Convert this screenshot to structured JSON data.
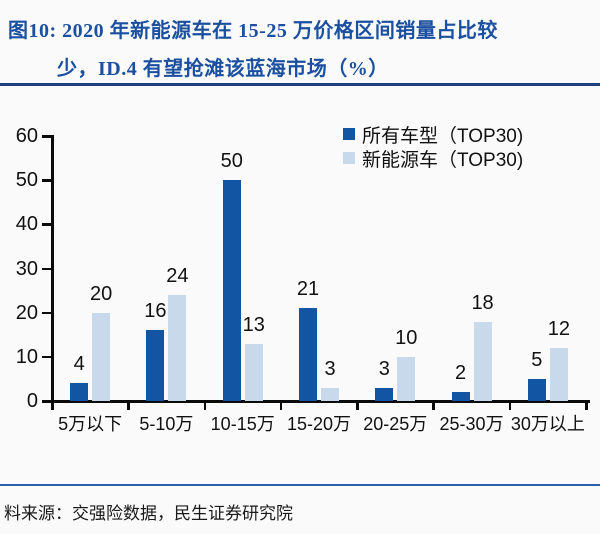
{
  "title": {
    "line1": "图10: 2020 年新能源车在 15-25 万价格区间销量占比较",
    "line2": "少，ID.4 有望抢滩该蓝海市场（%）"
  },
  "source": {
    "text": "料来源：交强险数据，民生证券研究院"
  },
  "colors": {
    "title": "#1b4fa0",
    "title_rule": "#1f3f80",
    "footer_rule": "#2e5fae",
    "axis": "#0a0a0a",
    "bg": "#fafafa",
    "bar_dark": "#1155a3",
    "bar_light": "#c9d9ec",
    "text": "#111111"
  },
  "chart_data": {
    "type": "bar",
    "title": "2020 年新能源车在 15-25 万价格区间销量占比较少，ID.4 有望抢滩该蓝海市场（%）",
    "categories": [
      "5万以下",
      "5-10万",
      "10-15万",
      "15-20万",
      "20-25万",
      "25-30万",
      "30万以上"
    ],
    "series": [
      {
        "name": "所有车型（TOP30)",
        "color": "#1155a3",
        "values": [
          4,
          16,
          50,
          21,
          3,
          2,
          5
        ]
      },
      {
        "name": "新能源车（TOP30)",
        "color": "#c9d9ec",
        "values": [
          20,
          24,
          13,
          3,
          10,
          18,
          12
        ]
      }
    ],
    "xlabel": "",
    "ylabel": "",
    "ylim": [
      0,
      60
    ],
    "yticks": [
      0,
      10,
      20,
      30,
      40,
      50,
      60
    ],
    "grid": false,
    "legend_position": "top-right",
    "value_labels": true
  }
}
